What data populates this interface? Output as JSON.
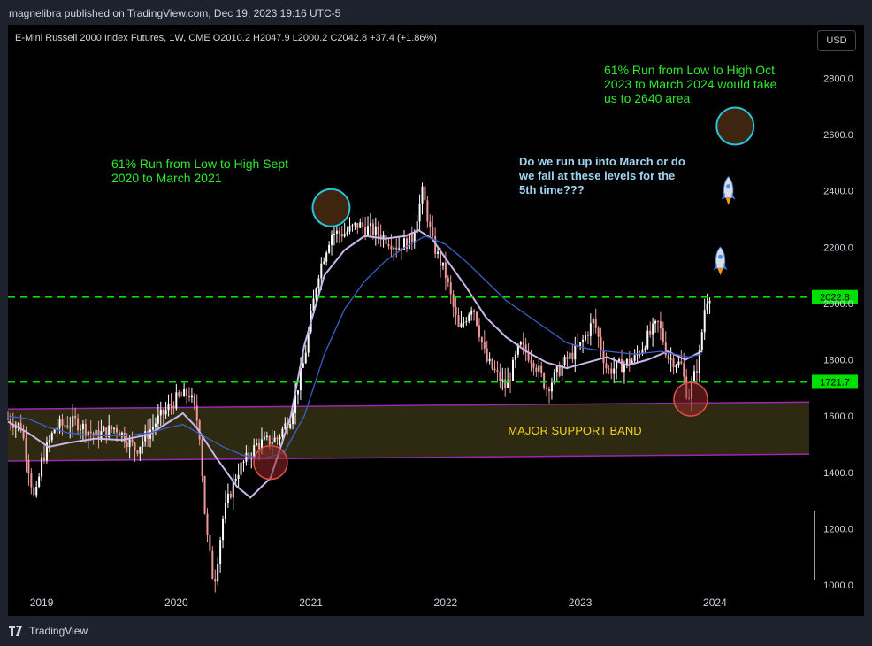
{
  "publisher_line": "magnelibra published on TradingView.com, Dec 19, 2023 19:16 UTC-5",
  "footer": {
    "brand": "TradingView"
  },
  "currency_button": "USD",
  "chart_data": {
    "type": "candlestick",
    "title": "E-Mini Russell 2000 Index Futures, 1W, CME",
    "ohlc_header": {
      "open": "O2010.2",
      "high": "H2047.9",
      "low": "L2000.2",
      "close": "C2042.8",
      "change": "+37.4 (+1.86%)"
    },
    "y_axis": {
      "ticks": [
        1000,
        1200,
        1400,
        1600,
        1800,
        2000,
        2200,
        2400,
        2600,
        2800
      ],
      "labels": [
        "1000.0",
        "1200.0",
        "1400.0",
        "1600.0",
        "1800.0",
        "2000.0",
        "2200.0",
        "2400.0",
        "2600.0",
        "2800.0"
      ],
      "range": [
        890,
        2990
      ]
    },
    "x_axis": {
      "ticks": [
        2019,
        2020,
        2021,
        2022,
        2023,
        2024
      ],
      "labels": [
        "2019",
        "2020",
        "2021",
        "2022",
        "2023",
        "2024"
      ],
      "range": [
        2018.75,
        2024.7
      ]
    },
    "price_levels": [
      {
        "label": "2022.8",
        "value": 2022.8,
        "color": "#00e000"
      },
      {
        "label": "1721.7",
        "value": 1721.7,
        "color": "#00e000"
      }
    ],
    "support_band": {
      "label": "MAJOR SUPPORT BAND",
      "upper": [
        [
          2018.75,
          1625
        ],
        [
          2024.7,
          1650
        ]
      ],
      "lower": [
        [
          2018.75,
          1440
        ],
        [
          2024.7,
          1465
        ]
      ]
    },
    "annotations": [
      {
        "text": "61% Run from Low to High Sept 2020 to March 2021",
        "lines": [
          "61% Run from Low to High Sept",
          "2020 to March 2021"
        ],
        "color": "#2ee82e"
      },
      {
        "text": "61% Run from Low to High Oct 2023 to March 2024 would take us to 2640 area",
        "lines": [
          "61% Run from Low to High Oct",
          "2023 to March 2024 would take",
          "us to 2640 area"
        ],
        "color": "#2ee82e"
      },
      {
        "text": "Do we run up into March or do we fail at these levels for the 5th time???",
        "lines": [
          "Do we run up into March or do",
          "we fail at these levels for the",
          "5th time???"
        ],
        "color": "#9fd3f0"
      }
    ],
    "markers": [
      {
        "kind": "target-circle",
        "x": 2021.15,
        "y": 2340,
        "color": "#26c6da"
      },
      {
        "kind": "target-circle",
        "x": 2024.15,
        "y": 2630,
        "color": "#26c6da"
      },
      {
        "kind": "low-circle",
        "x": 2020.7,
        "y": 1435,
        "color": "#e05050"
      },
      {
        "kind": "low-circle",
        "x": 2023.82,
        "y": 1660,
        "color": "#e05050"
      },
      {
        "kind": "rocket",
        "x": 2024.1,
        "y": 2400
      },
      {
        "kind": "rocket",
        "x": 2024.04,
        "y": 2150
      }
    ],
    "moving_averages": [
      {
        "name": "MA fast",
        "color": "#c9b7e8",
        "points": [
          [
            2018.75,
            1580
          ],
          [
            2018.9,
            1540
          ],
          [
            2019.05,
            1490
          ],
          [
            2019.2,
            1505
          ],
          [
            2019.4,
            1520
          ],
          [
            2019.6,
            1515
          ],
          [
            2019.8,
            1535
          ],
          [
            2019.95,
            1580
          ],
          [
            2020.05,
            1610
          ],
          [
            2020.15,
            1560
          ],
          [
            2020.3,
            1450
          ],
          [
            2020.45,
            1350
          ],
          [
            2020.55,
            1310
          ],
          [
            2020.7,
            1380
          ],
          [
            2020.85,
            1600
          ],
          [
            2020.95,
            1850
          ],
          [
            2021.1,
            2100
          ],
          [
            2021.25,
            2190
          ],
          [
            2021.4,
            2240
          ],
          [
            2021.55,
            2230
          ],
          [
            2021.7,
            2240
          ],
          [
            2021.8,
            2260
          ],
          [
            2021.9,
            2230
          ],
          [
            2022.0,
            2160
          ],
          [
            2022.15,
            2060
          ],
          [
            2022.3,
            1950
          ],
          [
            2022.45,
            1880
          ],
          [
            2022.6,
            1830
          ],
          [
            2022.75,
            1790
          ],
          [
            2022.9,
            1770
          ],
          [
            2023.05,
            1790
          ],
          [
            2023.2,
            1810
          ],
          [
            2023.35,
            1780
          ],
          [
            2023.5,
            1800
          ],
          [
            2023.65,
            1830
          ],
          [
            2023.78,
            1800
          ],
          [
            2023.9,
            1830
          ]
        ]
      },
      {
        "name": "MA slow",
        "color": "#3a60c8",
        "points": [
          [
            2018.75,
            1600
          ],
          [
            2018.9,
            1590
          ],
          [
            2019.05,
            1560
          ],
          [
            2019.2,
            1540
          ],
          [
            2019.4,
            1530
          ],
          [
            2019.6,
            1530
          ],
          [
            2019.8,
            1540
          ],
          [
            2019.95,
            1560
          ],
          [
            2020.05,
            1570
          ],
          [
            2020.2,
            1530
          ],
          [
            2020.35,
            1490
          ],
          [
            2020.5,
            1460
          ],
          [
            2020.65,
            1450
          ],
          [
            2020.8,
            1470
          ],
          [
            2020.95,
            1600
          ],
          [
            2021.1,
            1820
          ],
          [
            2021.25,
            1980
          ],
          [
            2021.4,
            2080
          ],
          [
            2021.55,
            2150
          ],
          [
            2021.7,
            2200
          ],
          [
            2021.85,
            2240
          ],
          [
            2022.0,
            2210
          ],
          [
            2022.15,
            2150
          ],
          [
            2022.3,
            2080
          ],
          [
            2022.45,
            2010
          ],
          [
            2022.6,
            1960
          ],
          [
            2022.75,
            1910
          ],
          [
            2022.9,
            1860
          ],
          [
            2023.05,
            1840
          ],
          [
            2023.2,
            1830
          ],
          [
            2023.4,
            1820
          ],
          [
            2023.6,
            1830
          ],
          [
            2023.8,
            1810
          ],
          [
            2023.9,
            1820
          ]
        ]
      }
    ],
    "price_path": [
      [
        2018.75,
        1590
      ],
      [
        2018.85,
        1560
      ],
      [
        2018.95,
        1290
      ],
      [
        2019.0,
        1440
      ],
      [
        2019.1,
        1560
      ],
      [
        2019.25,
        1580
      ],
      [
        2019.4,
        1530
      ],
      [
        2019.55,
        1560
      ],
      [
        2019.7,
        1480
      ],
      [
        2019.85,
        1580
      ],
      [
        2020.0,
        1660
      ],
      [
        2020.1,
        1680
      ],
      [
        2020.17,
        1560
      ],
      [
        2020.22,
        1200
      ],
      [
        2020.28,
        1000
      ],
      [
        2020.35,
        1250
      ],
      [
        2020.45,
        1400
      ],
      [
        2020.6,
        1500
      ],
      [
        2020.75,
        1520
      ],
      [
        2020.85,
        1600
      ],
      [
        2020.95,
        1800
      ],
      [
        2021.05,
        2100
      ],
      [
        2021.15,
        2250
      ],
      [
        2021.25,
        2250
      ],
      [
        2021.35,
        2280
      ],
      [
        2021.5,
        2250
      ],
      [
        2021.65,
        2200
      ],
      [
        2021.75,
        2230
      ],
      [
        2021.83,
        2400
      ],
      [
        2021.9,
        2220
      ],
      [
        2022.0,
        2100
      ],
      [
        2022.1,
        1900
      ],
      [
        2022.2,
        2000
      ],
      [
        2022.3,
        1800
      ],
      [
        2022.45,
        1700
      ],
      [
        2022.55,
        1850
      ],
      [
        2022.65,
        1800
      ],
      [
        2022.75,
        1700
      ],
      [
        2022.9,
        1800
      ],
      [
        2023.0,
        1850
      ],
      [
        2023.1,
        1940
      ],
      [
        2023.2,
        1760
      ],
      [
        2023.3,
        1780
      ],
      [
        2023.4,
        1800
      ],
      [
        2023.5,
        1880
      ],
      [
        2023.58,
        1930
      ],
      [
        2023.65,
        1810
      ],
      [
        2023.75,
        1780
      ],
      [
        2023.8,
        1660
      ],
      [
        2023.88,
        1800
      ],
      [
        2023.93,
        2010
      ],
      [
        2023.97,
        2040
      ]
    ]
  }
}
